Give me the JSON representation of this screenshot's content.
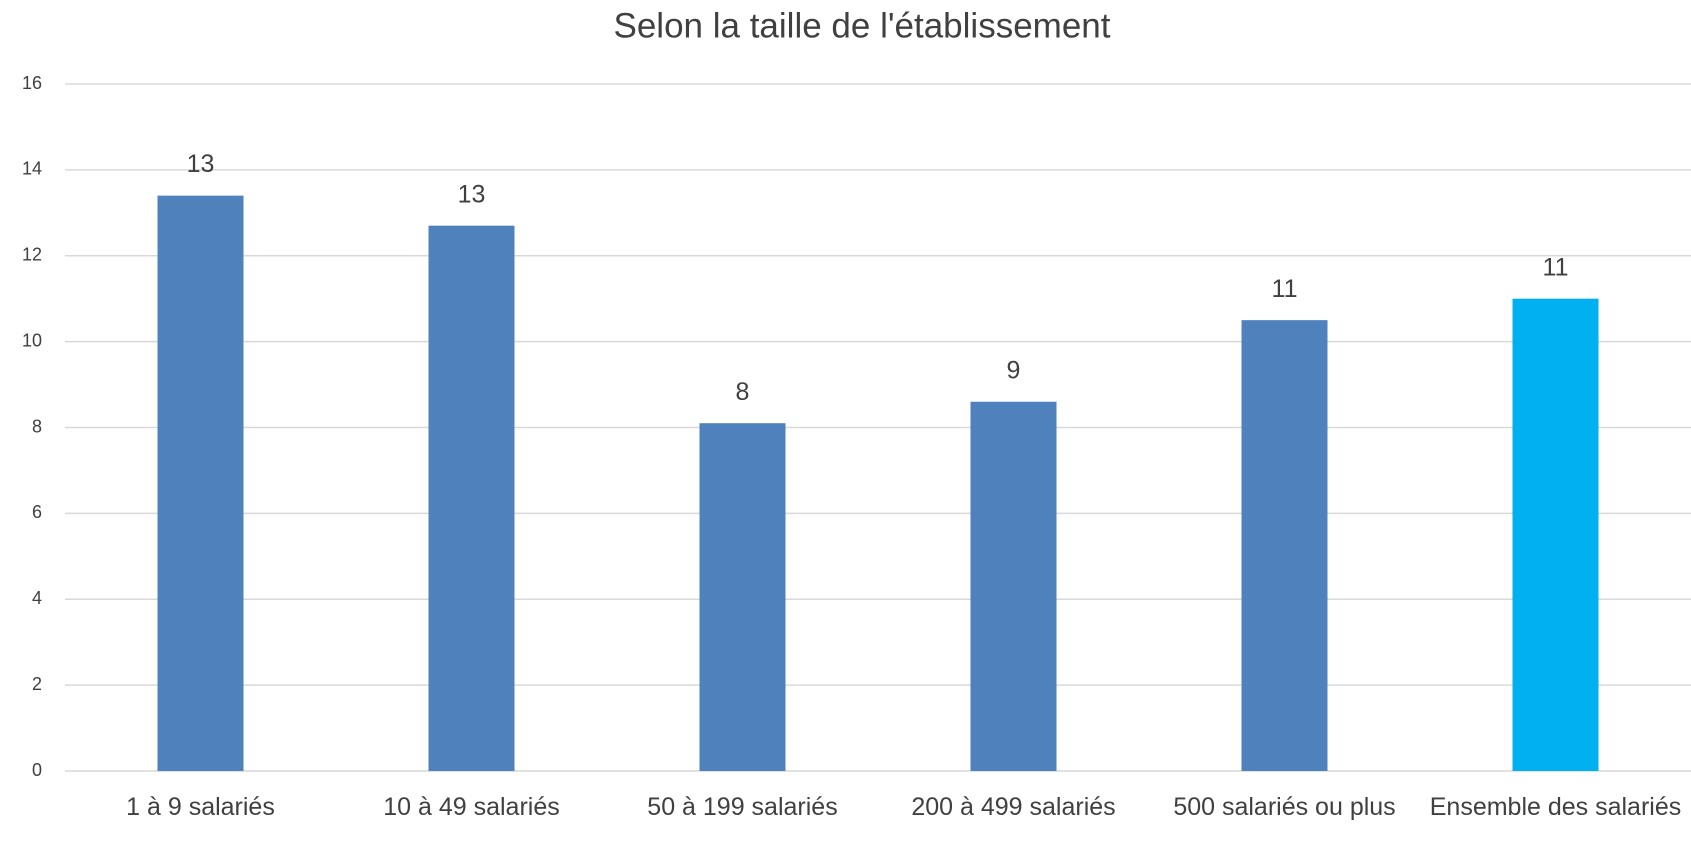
{
  "chart_data": {
    "type": "bar",
    "title": "Selon la taille de l'établissement",
    "categories": [
      "1 à 9 salariés",
      "10 à 49 salariés",
      "50 à 199 salariés",
      "200 à 499 salariés",
      "500 salariés ou plus",
      "Ensemble des salariés"
    ],
    "values": [
      13.4,
      12.7,
      8.1,
      8.6,
      10.5,
      11.0
    ],
    "value_labels": [
      "13",
      "13",
      "8",
      "9",
      "11",
      "11"
    ],
    "colors": [
      "#4f81bd",
      "#4f81bd",
      "#4f81bd",
      "#4f81bd",
      "#4f81bd",
      "#00b0f0"
    ],
    "ylim": [
      0,
      16
    ],
    "yticks": [
      0,
      2,
      4,
      6,
      8,
      10,
      12,
      14,
      16
    ],
    "grid": true
  }
}
